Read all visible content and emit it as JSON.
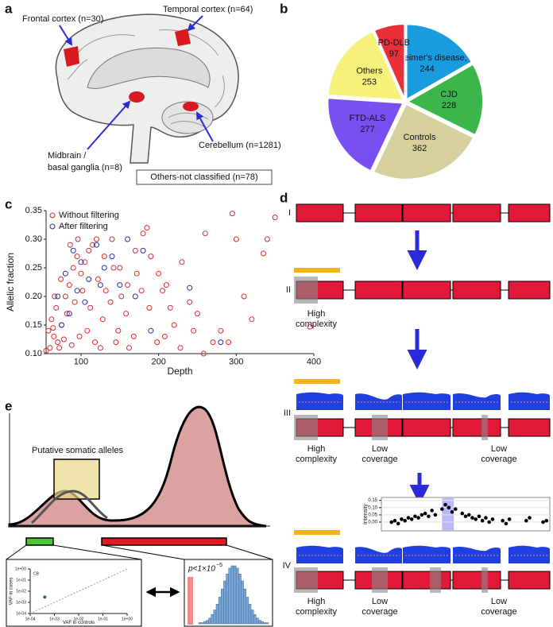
{
  "letters": [
    "a",
    "b",
    "c",
    "d",
    "e"
  ],
  "panel_a": {
    "frontal": "Frontal cortex (n=30)",
    "temporal": "Temporal cortex (n=64)",
    "midbrain": [
      "Midbrain /",
      "basal ganglia (n=8)"
    ],
    "cerebellum": "Cerebellum (n=1281)",
    "others": "Others-not classified (n=78)"
  },
  "panel_d": {
    "stages": [
      "I",
      "II",
      "III",
      "IV"
    ],
    "high_complexity": [
      "High",
      "complexity"
    ],
    "low_coverage": [
      "Low",
      "coverage"
    ]
  },
  "panel_e": {
    "annotation": "Putative somatic alleles",
    "p_label": "p<1×10",
    "p_exponent": "−5"
  },
  "chart_data": [
    {
      "type": "pie",
      "categories": [
        "Alzheimer's disease,",
        "CJD",
        "Controls",
        "FTD-ALS",
        "Others",
        "PD-DLB"
      ],
      "values": [
        244,
        228,
        362,
        277,
        253,
        97
      ],
      "colors": [
        "#1a9be0",
        "#3cb54a",
        "#d6cf9e",
        "#7a4ef0",
        "#f7f27c",
        "#e8303a"
      ]
    },
    {
      "type": "scatter",
      "xlabel": "Depth",
      "ylabel": "Allelic fraction",
      "xlim": [
        55,
        400
      ],
      "ylim": [
        0.1,
        0.35
      ],
      "xticks": [
        100,
        200,
        300,
        400
      ],
      "yticks": [
        {
          "value": 0.1,
          "label": "0.10"
        },
        0.15,
        {
          "value": 0.2,
          "label": "0.20"
        },
        0.25,
        {
          "value": 0.3,
          "label": "0.30"
        },
        0.35
      ],
      "legend": "upper left",
      "open_markers": true,
      "series": [
        {
          "name": "Without filtering",
          "color": "#e0282e",
          "x": [
            60,
            65,
            70,
            55,
            58,
            62,
            68,
            75,
            80,
            85,
            90,
            95,
            100,
            105,
            110,
            115,
            120,
            130,
            140,
            150,
            160,
            170,
            180,
            185,
            190,
            200,
            210,
            220,
            230,
            250,
            260,
            270,
            280,
            295,
            300,
            310,
            320,
            335,
            340,
            350,
            395,
            72,
            78,
            88,
            98,
            108,
            118,
            128,
            138,
            148,
            158,
            168,
            178,
            188,
            198,
            208,
            228,
            240,
            82,
            92,
            102,
            112,
            122,
            132,
            142,
            152,
            162,
            172,
            66,
            74,
            64,
            86,
            96,
            145,
            125,
            205,
            215,
            245,
            290,
            258
          ],
          "values": [
            0.11,
            0.13,
            0.12,
            0.105,
            0.14,
            0.16,
            0.18,
            0.15,
            0.2,
            0.22,
            0.25,
            0.27,
            0.24,
            0.26,
            0.28,
            0.29,
            0.3,
            0.27,
            0.3,
            0.25,
            0.22,
            0.28,
            0.31,
            0.32,
            0.27,
            0.24,
            0.22,
            0.15,
            0.26,
            0.17,
            0.31,
            0.12,
            0.14,
            0.345,
            0.3,
            0.2,
            0.16,
            0.275,
            0.3,
            0.338,
            0.147,
            0.11,
            0.125,
            0.115,
            0.13,
            0.14,
            0.12,
            0.16,
            0.19,
            0.14,
            0.17,
            0.13,
            0.21,
            0.18,
            0.12,
            0.13,
            0.11,
            0.19,
            0.17,
            0.19,
            0.21,
            0.18,
            0.23,
            0.21,
            0.25,
            0.2,
            0.11,
            0.24,
            0.2,
            0.23,
            0.145,
            0.29,
            0.3,
            0.12,
            0.11,
            0.21,
            0.18,
            0.14,
            0.12,
            0.1
          ]
        },
        {
          "name": "After filtering",
          "color": "#2b2fb0",
          "x": [
            70,
            80,
            90,
            100,
            110,
            120,
            130,
            140,
            150,
            160,
            170,
            180,
            190,
            240,
            280,
            85,
            105,
            75,
            125,
            95
          ],
          "values": [
            0.2,
            0.24,
            0.28,
            0.26,
            0.23,
            0.29,
            0.25,
            0.27,
            0.22,
            0.3,
            0.2,
            0.28,
            0.14,
            0.215,
            0.12,
            0.17,
            0.19,
            0.15,
            0.22,
            0.21
          ]
        }
      ]
    },
    {
      "type": "scatter",
      "ylabel": "Intensity",
      "xlim": [
        0,
        100
      ],
      "ylim": [
        -0.06,
        0.17
      ],
      "yticks": [
        {
          "value": 0,
          "label": "0.00"
        },
        0.05,
        {
          "value": 0.1,
          "label": "0.10"
        },
        0.15
      ],
      "grid": true,
      "series": [
        {
          "color": "#000000",
          "x": [
            6,
            8,
            10,
            12,
            14,
            16,
            18,
            20,
            22,
            24,
            26,
            28,
            30,
            32,
            36,
            38,
            40,
            42,
            44,
            48,
            50,
            52,
            54,
            56,
            58,
            60,
            62,
            64,
            66,
            72,
            74,
            76,
            86,
            88,
            96,
            98
          ],
          "values": [
            0,
            0.01,
            -0.01,
            0.02,
            0.01,
            0.03,
            0.02,
            0.04,
            0.03,
            0.05,
            0.06,
            0.04,
            0.08,
            0.05,
            0.09,
            0.12,
            0.1,
            0.07,
            0.09,
            0.06,
            0.04,
            0.05,
            0.03,
            0.02,
            0.04,
            0.01,
            0.03,
            0,
            0.02,
            0.01,
            -0.01,
            0.02,
            0.01,
            0.03,
            0,
            0.01
          ]
        }
      ]
    },
    {
      "type": "scatter",
      "xlabel": "VAF in controls",
      "ylabel": "VAF in cases",
      "annotation": "CB",
      "log_x": true,
      "log_y": true,
      "xlim": [
        0.0001,
        1
      ],
      "ylim": [
        0.0001,
        1
      ],
      "xticks": [
        {
          "value": 0.0001,
          "label": "1e-04"
        },
        {
          "value": 0.001,
          "label": "1e-03"
        },
        {
          "value": 0.01,
          "label": "1e-02"
        },
        {
          "value": 0.1,
          "label": "1e-01"
        },
        {
          "value": 1,
          "label": "1e+00"
        }
      ],
      "yticks": [
        {
          "value": 0.0001,
          "label": "1e-04"
        },
        {
          "value": 0.001,
          "label": "1e-03"
        },
        {
          "value": 0.01,
          "label": "1e-02"
        },
        {
          "value": 0.1,
          "label": "1e-01"
        },
        {
          "value": 1,
          "label": "1e+00"
        }
      ],
      "series": [
        {
          "color": "#2a6e3a",
          "x": [
            0.0004
          ],
          "values": [
            0.003
          ]
        }
      ]
    },
    {
      "type": "histogram",
      "color": "#7aa6d4",
      "bins": [
        0,
        1,
        2,
        3,
        4,
        5,
        6,
        7,
        8,
        9,
        10,
        11,
        12,
        13,
        14,
        15,
        16,
        17,
        18,
        19,
        20,
        21,
        22,
        23,
        24,
        25,
        26,
        27,
        28
      ],
      "values": [
        1,
        1,
        2,
        3,
        5,
        8,
        12,
        17,
        23,
        30,
        37,
        43,
        48,
        50,
        50,
        48,
        43,
        37,
        30,
        23,
        17,
        12,
        8,
        5,
        3,
        2,
        1,
        1
      ]
    }
  ]
}
